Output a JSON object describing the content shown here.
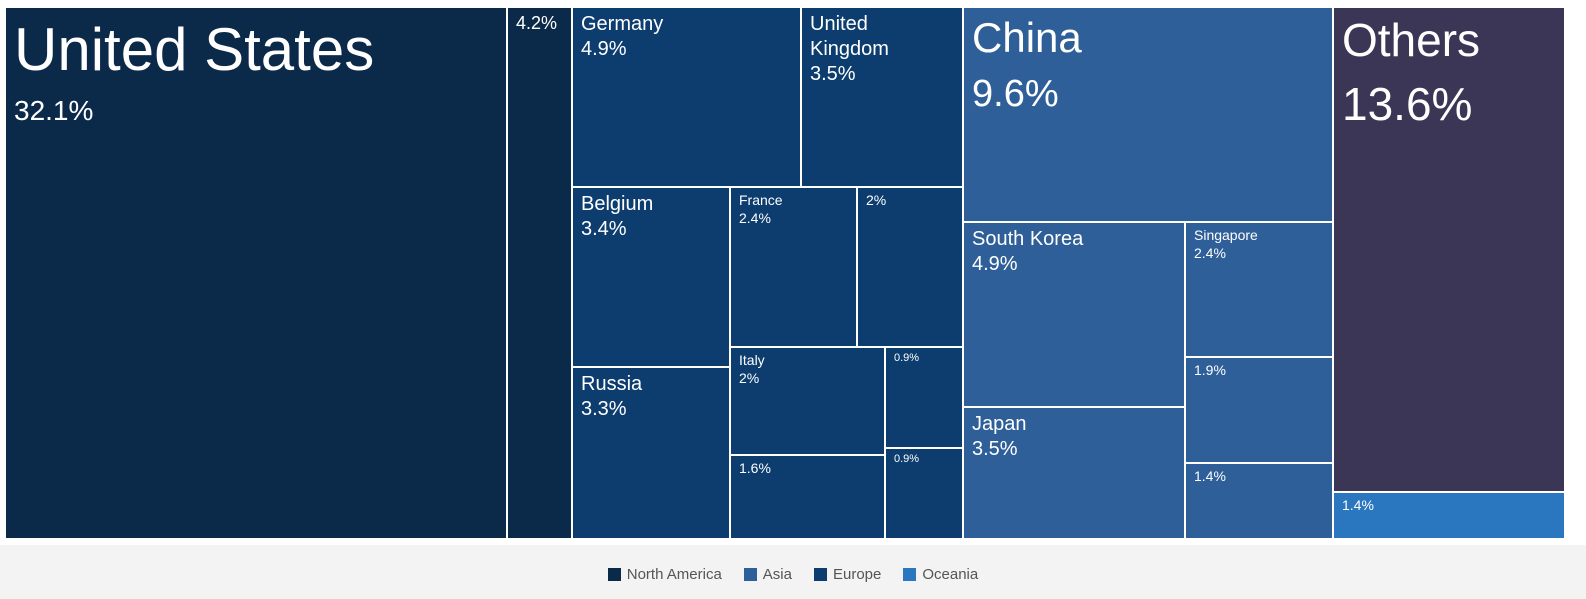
{
  "chart_data": {
    "type": "treemap",
    "title": "",
    "legend": {
      "placement": "bottom-center",
      "entries": [
        {
          "name": "North America",
          "color": "#0b2a4a"
        },
        {
          "name": "Asia",
          "color": "#2f5f98"
        },
        {
          "name": "Europe",
          "color": "#0c3d6e"
        },
        {
          "name": "Oceania",
          "color": "#2a77c0"
        }
      ]
    },
    "regions": [
      "North America",
      "Europe",
      "Asia",
      "Others",
      "Oceania"
    ],
    "colors": {
      "North America": "#0b2a4a",
      "Europe": "#0c3d6e",
      "Asia": "#2f5f98",
      "Others": "#3b3656",
      "Oceania": "#2a77c0"
    },
    "items": [
      {
        "name": "United States",
        "value": 32.1,
        "value_label": "32.1%",
        "region": "North America"
      },
      {
        "name": "",
        "value": 4.2,
        "value_label": "4.2%",
        "region": "North America"
      },
      {
        "name": "Germany",
        "value": 4.9,
        "value_label": "4.9%",
        "region": "Europe"
      },
      {
        "name": "United Kingdom",
        "value": 3.5,
        "value_label": "3.5%",
        "region": "Europe"
      },
      {
        "name": "Belgium",
        "value": 3.4,
        "value_label": "3.4%",
        "region": "Europe"
      },
      {
        "name": "France",
        "value": 2.4,
        "value_label": "2.4%",
        "region": "Europe"
      },
      {
        "name": "",
        "value": 2.0,
        "value_label": "2%",
        "region": "Europe"
      },
      {
        "name": "Russia",
        "value": 3.3,
        "value_label": "3.3%",
        "region": "Europe"
      },
      {
        "name": "Italy",
        "value": 2.0,
        "value_label": "2%",
        "region": "Europe"
      },
      {
        "name": "",
        "value": 0.9,
        "value_label": "0.9%",
        "region": "Europe"
      },
      {
        "name": "",
        "value": 1.6,
        "value_label": "1.6%",
        "region": "Europe"
      },
      {
        "name": "",
        "value": 0.9,
        "value_label": "0.9%",
        "region": "Europe"
      },
      {
        "name": "China",
        "value": 9.6,
        "value_label": "9.6%",
        "region": "Asia"
      },
      {
        "name": "South Korea",
        "value": 4.9,
        "value_label": "4.9%",
        "region": "Asia"
      },
      {
        "name": "Singapore",
        "value": 2.4,
        "value_label": "2.4%",
        "region": "Asia"
      },
      {
        "name": "",
        "value": 1.9,
        "value_label": "1.9%",
        "region": "Asia"
      },
      {
        "name": "Japan",
        "value": 3.5,
        "value_label": "3.5%",
        "region": "Asia"
      },
      {
        "name": "",
        "value": 1.4,
        "value_label": "1.4%",
        "region": "Asia"
      },
      {
        "name": "Others",
        "value": 13.6,
        "value_label": "13.6%",
        "region": "Others"
      },
      {
        "name": "",
        "value": 1.4,
        "value_label": "1.4%",
        "region": "Oceania"
      }
    ]
  }
}
